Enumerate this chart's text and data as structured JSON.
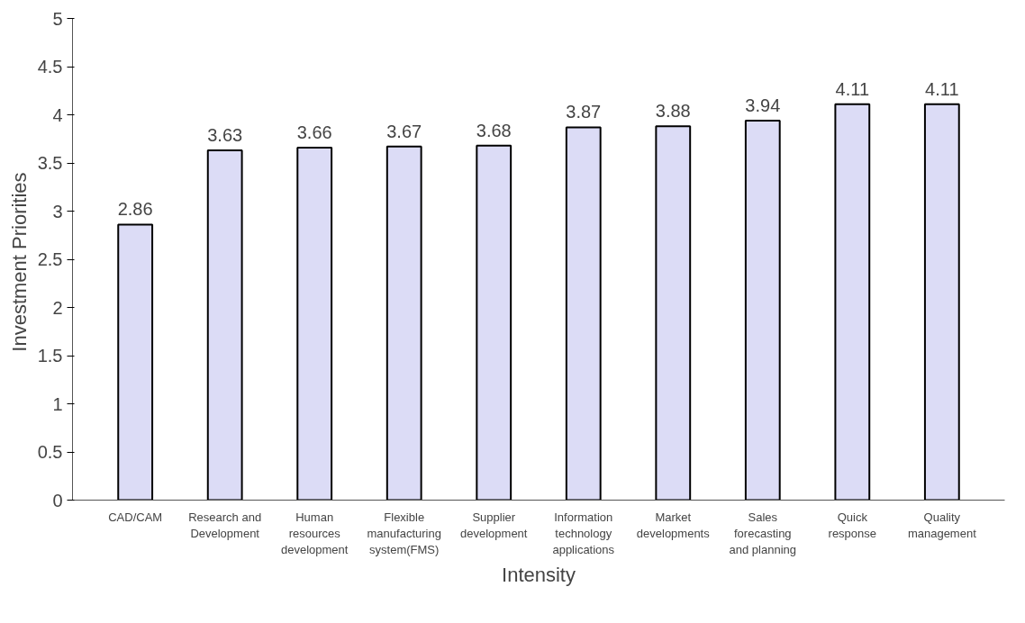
{
  "chart_data": {
    "type": "bar",
    "xlabel": "Intensity",
    "ylabel": "Investment  Priorities",
    "categories": [
      "CAD/CAM",
      "Research and\nDevelopment",
      "Human\nresources\ndevelopment",
      "Flexible\nmanufacturing\nsystem(FMS)",
      "Supplier\ndevelopment",
      "Information\ntechnology\napplications",
      "Market\ndevelopments",
      "Sales\nforecasting\nand planning",
      "Quick\nresponse",
      "Quality\nmanagement"
    ],
    "values": [
      2.86,
      3.63,
      3.66,
      3.67,
      3.68,
      3.87,
      3.88,
      3.94,
      4.11,
      4.11
    ],
    "color": "#dcdcf6",
    "ylim": [
      0,
      5
    ],
    "yticks": [
      0,
      0.5,
      1,
      1.5,
      2,
      2.5,
      3,
      3.5,
      4,
      4.5,
      5
    ],
    "data_labels": true,
    "grid": false
  }
}
